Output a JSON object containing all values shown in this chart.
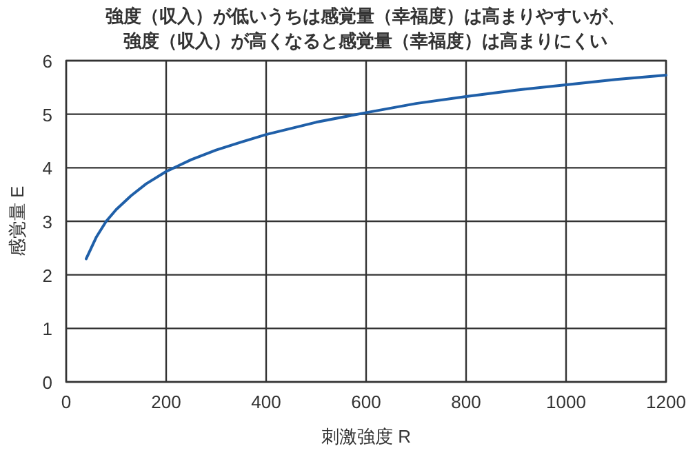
{
  "chart_data": {
    "type": "line",
    "title": "強度（収入）が低いうちは感覚量（幸福度）は高まりやすいが、",
    "subtitle": "強度（収入）が高くなると感覚量（幸福度）は高まりにくい",
    "xlabel": "刺激強度 R",
    "ylabel": "感覚量 E",
    "x": [
      40,
      60,
      80,
      100,
      130,
      160,
      200,
      250,
      300,
      350,
      400,
      500,
      600,
      700,
      800,
      900,
      1000,
      1100,
      1200
    ],
    "series": [
      {
        "color": "#1f5fa8",
        "values": [
          2.3,
          2.7,
          3.0,
          3.22,
          3.48,
          3.7,
          3.93,
          4.15,
          4.33,
          4.48,
          4.62,
          4.85,
          5.03,
          5.2,
          5.33,
          5.45,
          5.55,
          5.65,
          5.73
        ]
      }
    ],
    "xlim": [
      0,
      1200
    ],
    "xticks": [
      0,
      200,
      400,
      600,
      800,
      1000,
      1200
    ],
    "ylim": [
      0,
      6
    ],
    "yticks": [
      0,
      1,
      2,
      3,
      4,
      5,
      6
    ],
    "grid": true,
    "marker": "none",
    "line_style": "solid"
  }
}
